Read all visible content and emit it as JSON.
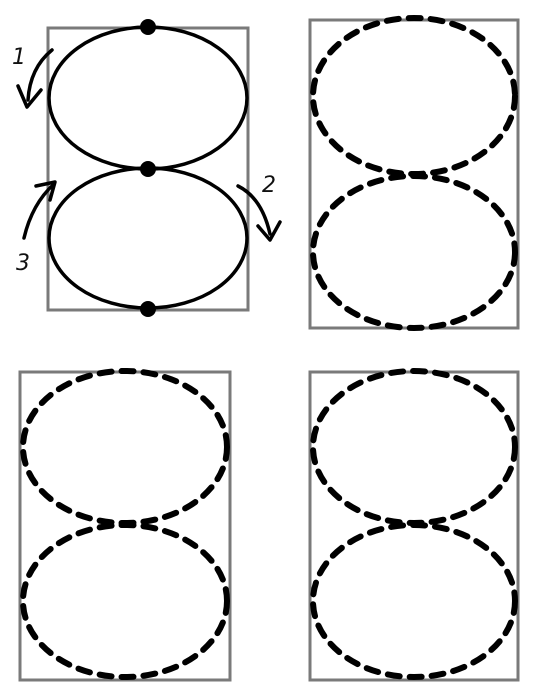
{
  "diagram": {
    "colors": {
      "frame": "#7a7a7a",
      "stroke": "#000000"
    },
    "guide": {
      "steps": [
        {
          "label": "1",
          "icon": "arrow-down-left-icon"
        },
        {
          "label": "2",
          "icon": "arrow-down-right-icon"
        },
        {
          "label": "3",
          "icon": "arrow-up-left-icon"
        }
      ]
    },
    "practice_panels": 3
  }
}
